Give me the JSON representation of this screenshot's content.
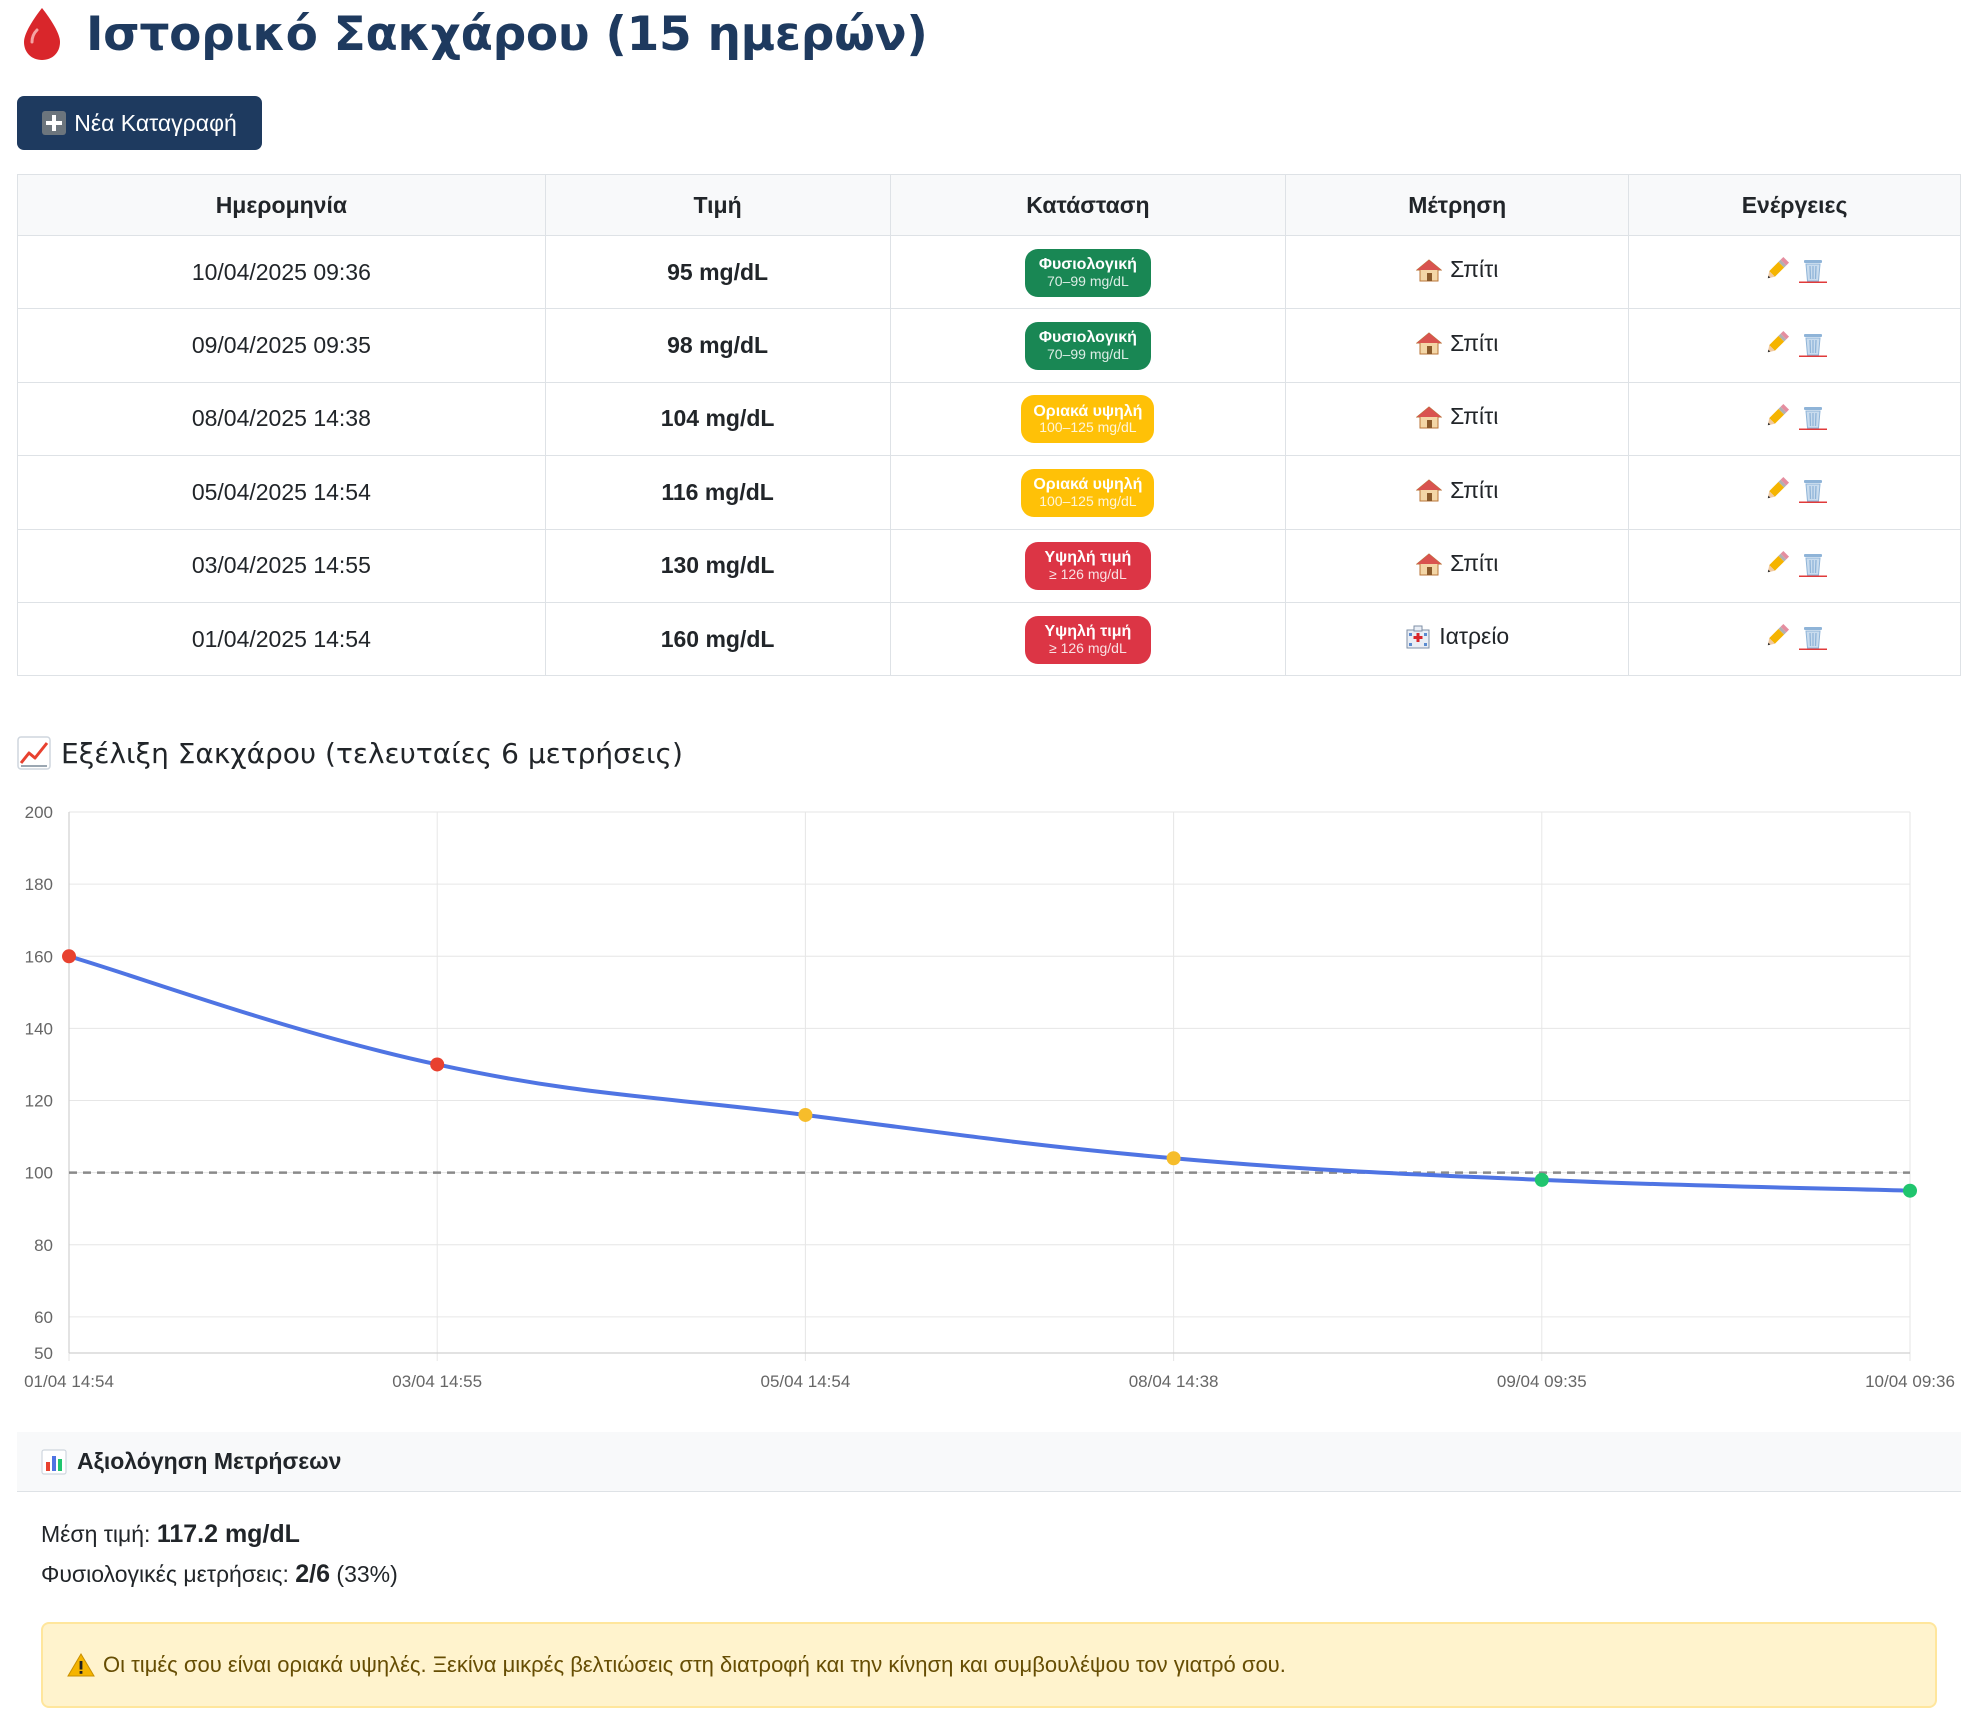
{
  "page": {
    "title": "Ιστορικό Σακχάρου (15 ημερών)",
    "title_icon": "blood-drop-icon"
  },
  "toolbar": {
    "new_entry_label": "Νέα Καταγραφή",
    "new_entry_icon": "plus-icon"
  },
  "table": {
    "headers": [
      "Ημερομηνία",
      "Τιμή",
      "Κατάσταση",
      "Μέτρηση",
      "Ενέργειες"
    ],
    "rows": [
      {
        "date": "10/04/2025 09:36",
        "value": "95 mg/dL",
        "status": {
          "label": "Φυσιολογική",
          "range": "70–99 mg/dL",
          "level": "normal"
        },
        "location": {
          "icon": "house-icon",
          "label": "Σπίτι"
        }
      },
      {
        "date": "09/04/2025 09:35",
        "value": "98 mg/dL",
        "status": {
          "label": "Φυσιολογική",
          "range": "70–99 mg/dL",
          "level": "normal"
        },
        "location": {
          "icon": "house-icon",
          "label": "Σπίτι"
        }
      },
      {
        "date": "08/04/2025 14:38",
        "value": "104 mg/dL",
        "status": {
          "label": "Οριακά υψηλή",
          "range": "100–125 mg/dL",
          "level": "borderline"
        },
        "location": {
          "icon": "house-icon",
          "label": "Σπίτι"
        }
      },
      {
        "date": "05/04/2025 14:54",
        "value": "116 mg/dL",
        "status": {
          "label": "Οριακά υψηλή",
          "range": "100–125 mg/dL",
          "level": "borderline"
        },
        "location": {
          "icon": "house-icon",
          "label": "Σπίτι"
        }
      },
      {
        "date": "03/04/2025 14:55",
        "value": "130 mg/dL",
        "status": {
          "label": "Υψηλή τιμή",
          "range": "≥ 126 mg/dL",
          "level": "high"
        },
        "location": {
          "icon": "house-icon",
          "label": "Σπίτι"
        }
      },
      {
        "date": "01/04/2025 14:54",
        "value": "160 mg/dL",
        "status": {
          "label": "Υψηλή τιμή",
          "range": "≥ 126 mg/dL",
          "level": "high"
        },
        "location": {
          "icon": "hospital-icon",
          "label": "Ιατρείο"
        }
      }
    ],
    "actions": [
      "pencil-icon",
      "trash-icon"
    ]
  },
  "chart_section": {
    "title": "Εξέλιξη Σακχάρου (τελευταίες 6 μετρήσεις)",
    "icon": "chart-increasing-icon"
  },
  "chart_data": {
    "type": "line",
    "x": [
      "01/04 14:54",
      "03/04 14:55",
      "05/04 14:54",
      "08/04 14:38",
      "09/04 09:35",
      "10/04 09:36"
    ],
    "series": [
      {
        "values": [
          160,
          130,
          116,
          104,
          98,
          95
        ]
      }
    ],
    "point_levels": [
      "high",
      "high",
      "borderline",
      "borderline",
      "normal",
      "normal"
    ],
    "reference_line": 100,
    "ylim": [
      50,
      200
    ],
    "yticks": [
      50,
      60,
      80,
      100,
      120,
      140,
      160,
      180,
      200
    ],
    "grid": true,
    "legend": "none"
  },
  "evaluation": {
    "title": "Αξιολόγηση Μετρήσεων",
    "icon": "bar-chart-icon",
    "mean_label": "Μέση τιμή:",
    "mean_value": "117.2 mg/dL",
    "normal_label": "Φυσιολογικές μετρήσεις:",
    "normal_count": "2/6",
    "normal_pct": "(33%)",
    "alert_icon": "warning-icon",
    "alert_text": "Οι τιμές σου είναι οριακά υψηλές. Ξεκίνα μικρές βελτιώσεις στη διατροφή και την κίνηση και συμβουλέψου τον γιατρό σου."
  },
  "colors": {
    "primary": "#1e3a5f",
    "normal": "#198754",
    "borderline": "#ffc107",
    "high": "#dc3545",
    "line": "#4f74e3",
    "point_high": "#e8412f",
    "point_borderline": "#f6bd2b",
    "point_normal": "#20c56e",
    "alert_bg": "#fff3cd"
  }
}
